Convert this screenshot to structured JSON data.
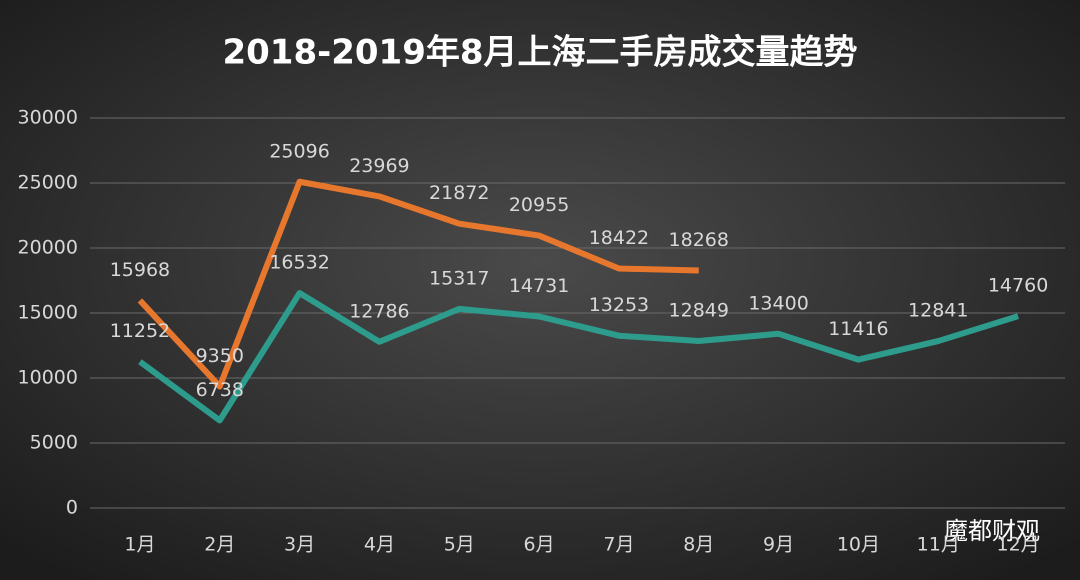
{
  "chart_data": {
    "type": "line",
    "title": "2018-2019年8月上海二手房成交量趋势",
    "categories": [
      "1月",
      "2月",
      "3月",
      "4月",
      "5月",
      "6月",
      "7月",
      "8月",
      "9月",
      "10月",
      "11月",
      "12月"
    ],
    "series": [
      {
        "color": "#2e9c8c",
        "values": [
          11252,
          6738,
          16532,
          12786,
          15317,
          14731,
          13253,
          12849,
          13400,
          11416,
          12841,
          14760
        ]
      },
      {
        "color": "#e8772e",
        "values": [
          15968,
          9350,
          25096,
          23969,
          21872,
          20955,
          18422,
          18268,
          null,
          null,
          null,
          null
        ]
      }
    ],
    "ylim": [
      0,
      30000
    ],
    "yticks": [
      0,
      5000,
      10000,
      15000,
      20000,
      25000,
      30000
    ],
    "grid": true,
    "watermark": "魔都财观"
  }
}
